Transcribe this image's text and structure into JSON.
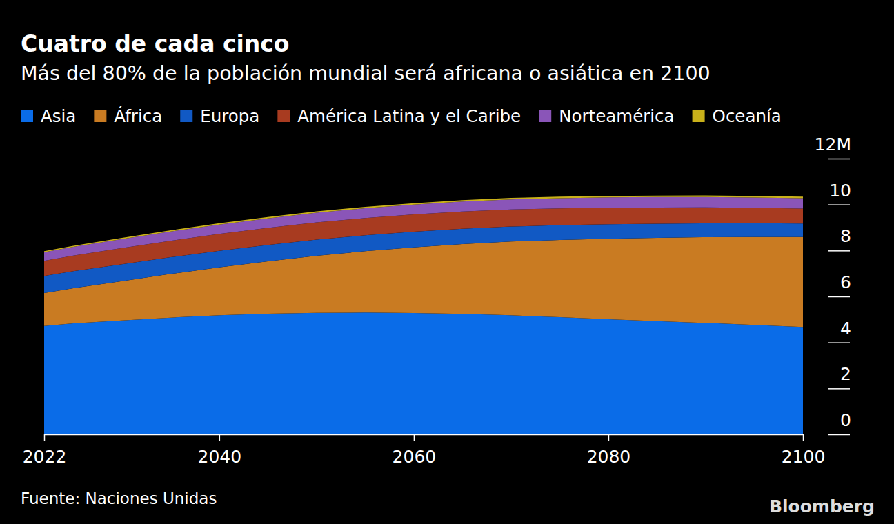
{
  "chart_data": {
    "type": "area",
    "stacked": true,
    "title": "Cuatro de cada cinco",
    "subtitle": "Más del 80% de la población mundial será africana o asiática en 2100",
    "source": "Fuente: Naciones Unidas",
    "credit": "Bloomberg",
    "legend": "top",
    "x": [
      2022,
      2025,
      2030,
      2035,
      2040,
      2045,
      2050,
      2055,
      2060,
      2065,
      2070,
      2075,
      2080,
      2085,
      2090,
      2095,
      2100
    ],
    "series": [
      {
        "name": "Asia",
        "color": "#0a6ce8",
        "values": [
          4.72,
          4.83,
          4.96,
          5.08,
          5.18,
          5.25,
          5.29,
          5.3,
          5.28,
          5.24,
          5.18,
          5.1,
          5.01,
          4.93,
          4.85,
          4.76,
          4.67
        ]
      },
      {
        "name": "África",
        "color": "#c97b22",
        "values": [
          1.43,
          1.53,
          1.71,
          1.9,
          2.09,
          2.28,
          2.48,
          2.67,
          2.86,
          3.04,
          3.21,
          3.36,
          3.5,
          3.62,
          3.73,
          3.83,
          3.92
        ]
      },
      {
        "name": "Europa",
        "color": "#1159c4",
        "values": [
          0.744,
          0.742,
          0.736,
          0.728,
          0.72,
          0.712,
          0.703,
          0.692,
          0.68,
          0.668,
          0.655,
          0.642,
          0.63,
          0.617,
          0.605,
          0.595,
          0.586
        ]
      },
      {
        "name": "América Latina y el Caribe",
        "color": "#a83b20",
        "values": [
          0.66,
          0.675,
          0.7,
          0.716,
          0.73,
          0.742,
          0.75,
          0.752,
          0.75,
          0.746,
          0.74,
          0.731,
          0.72,
          0.706,
          0.69,
          0.671,
          0.65
        ]
      },
      {
        "name": "Norteamérica",
        "color": "#8a55b8",
        "values": [
          0.376,
          0.383,
          0.395,
          0.403,
          0.41,
          0.416,
          0.421,
          0.426,
          0.43,
          0.435,
          0.44,
          0.445,
          0.45,
          0.451,
          0.45,
          0.449,
          0.448
        ]
      },
      {
        "name": "Oceanía",
        "color": "#c9b11a",
        "values": [
          0.045,
          0.047,
          0.05,
          0.053,
          0.055,
          0.057,
          0.058,
          0.06,
          0.061,
          0.063,
          0.064,
          0.065,
          0.066,
          0.067,
          0.068,
          0.069,
          0.069
        ]
      }
    ],
    "xlim": [
      2022,
      2100
    ],
    "xticks": [
      2022,
      2040,
      2060,
      2080,
      2100
    ],
    "ylim": [
      0,
      12
    ],
    "yticks": [
      0,
      2,
      4,
      6,
      8,
      10,
      {
        "value": 12,
        "label": "12M"
      }
    ]
  }
}
